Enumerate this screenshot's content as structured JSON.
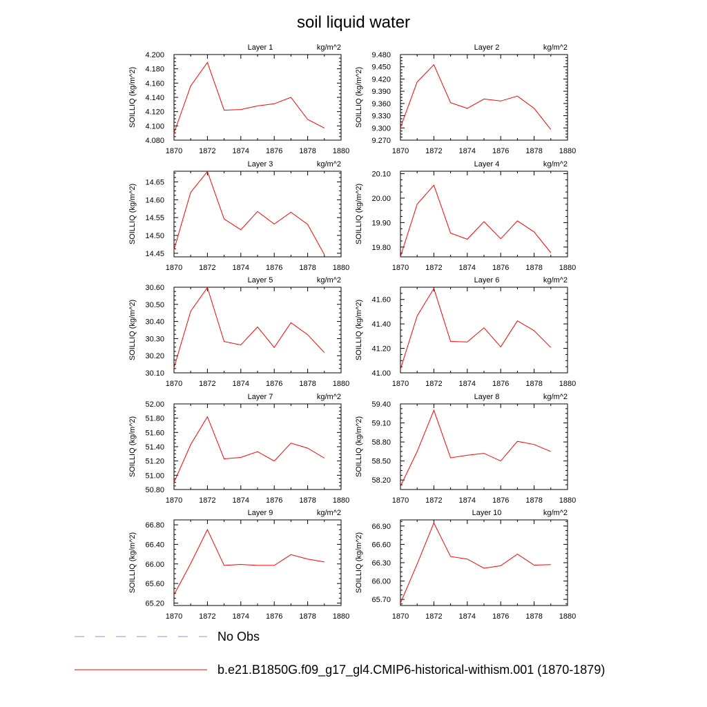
{
  "chart_data": {
    "title": "soil liquid water",
    "type": "line",
    "grid": false,
    "x": [
      1870,
      1871,
      1872,
      1873,
      1874,
      1875,
      1876,
      1877,
      1878,
      1879
    ],
    "xlim": [
      1870,
      1880
    ],
    "xticks": [
      "1870",
      "1872",
      "1874",
      "1876",
      "1878",
      "1880"
    ],
    "ylabel": "SOILLIQ  (kg/m^2)",
    "legend": [
      {
        "label": "No Obs",
        "color": "#8c8cf0",
        "style": "dashed"
      },
      {
        "label": "b.e21.B1850G.f09_g17_gl4.CMIP6-historical-withism.001 (1870-1879)",
        "color": "#ff0000",
        "style": "solid"
      }
    ],
    "panels": [
      {
        "title": "Layer 1",
        "units": "kg/m^2",
        "ylim": [
          4.08,
          4.2
        ],
        "yticks": [
          "4.080",
          "4.100",
          "4.120",
          "4.140",
          "4.160",
          "4.180",
          "4.200"
        ],
        "values": [
          4.09,
          4.156,
          4.189,
          4.122,
          4.123,
          4.128,
          4.131,
          4.14,
          4.109,
          4.097
        ]
      },
      {
        "title": "Layer 2",
        "units": "kg/m^2",
        "ylim": [
          9.27,
          9.48
        ],
        "yticks": [
          "9.270",
          "9.300",
          "9.330",
          "9.360",
          "9.390",
          "9.420",
          "9.450",
          "9.480"
        ],
        "values": [
          9.301,
          9.413,
          9.455,
          9.362,
          9.348,
          9.371,
          9.366,
          9.378,
          9.348,
          9.296
        ]
      },
      {
        "title": "Layer 3",
        "units": "kg/m^2",
        "ylim": [
          14.44,
          14.68
        ],
        "yticks": [
          "14.45",
          "14.50",
          "14.55",
          "14.60",
          "14.65"
        ],
        "values": [
          14.46,
          14.621,
          14.679,
          14.546,
          14.516,
          14.567,
          14.532,
          14.565,
          14.531,
          14.446
        ]
      },
      {
        "title": "Layer 4",
        "units": "kg/m^2",
        "ylim": [
          19.76,
          20.11
        ],
        "yticks": [
          "19.80",
          "19.90",
          "20.00",
          "20.10"
        ],
        "values": [
          19.761,
          19.975,
          20.053,
          19.857,
          19.832,
          19.904,
          19.834,
          19.907,
          19.862,
          19.777
        ]
      },
      {
        "title": "Layer 5",
        "units": "kg/m^2",
        "ylim": [
          30.1,
          30.6
        ],
        "yticks": [
          "30.10",
          "30.20",
          "30.30",
          "30.40",
          "30.50",
          "30.60"
        ],
        "values": [
          30.13,
          30.46,
          30.598,
          30.283,
          30.263,
          30.368,
          30.248,
          30.393,
          30.323,
          30.218
        ]
      },
      {
        "title": "Layer 6",
        "units": "kg/m^2",
        "ylim": [
          41.0,
          41.7
        ],
        "yticks": [
          "41.00",
          "41.20",
          "41.40",
          "41.60"
        ],
        "values": [
          41.03,
          41.465,
          41.69,
          41.257,
          41.253,
          41.368,
          41.212,
          41.425,
          41.345,
          41.208
        ]
      },
      {
        "title": "Layer 7",
        "units": "kg/m^2",
        "ylim": [
          50.8,
          52.0
        ],
        "yticks": [
          "50.80",
          "51.00",
          "51.20",
          "51.40",
          "51.60",
          "51.80",
          "52.00"
        ],
        "values": [
          50.9,
          51.43,
          51.82,
          51.23,
          51.25,
          51.33,
          51.2,
          51.45,
          51.38,
          51.24
        ]
      },
      {
        "title": "Layer 8",
        "units": "kg/m^2",
        "ylim": [
          58.05,
          59.4
        ],
        "yticks": [
          "58.20",
          "58.50",
          "58.80",
          "59.10",
          "59.40"
        ],
        "values": [
          58.1,
          58.65,
          59.3,
          58.55,
          58.59,
          58.62,
          58.5,
          58.81,
          58.76,
          58.65
        ]
      },
      {
        "title": "Layer 9",
        "units": "kg/m^2",
        "ylim": [
          65.15,
          66.9
        ],
        "yticks": [
          "65.20",
          "65.60",
          "66.00",
          "66.40",
          "66.80"
        ],
        "values": [
          65.37,
          66.01,
          66.7,
          65.97,
          65.99,
          65.97,
          65.97,
          66.19,
          66.1,
          66.04
        ]
      },
      {
        "title": "Layer 10",
        "units": "kg/m^2",
        "ylim": [
          65.6,
          67.0
        ],
        "yticks": [
          "65.70",
          "66.00",
          "66.30",
          "66.60",
          "66.90"
        ],
        "values": [
          65.64,
          66.28,
          66.95,
          66.4,
          66.36,
          66.21,
          66.25,
          66.44,
          66.26,
          66.27
        ]
      }
    ]
  }
}
